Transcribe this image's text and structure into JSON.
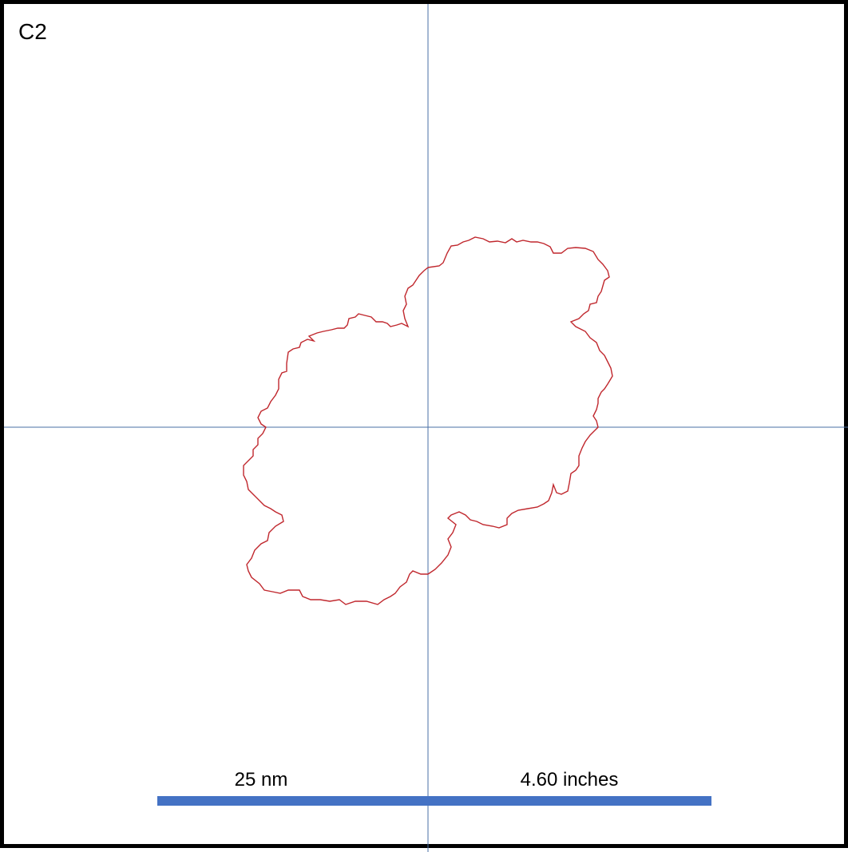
{
  "panel": {
    "label": "C2"
  },
  "scale_bar": {
    "left_label": "25 nm",
    "right_label": "4.60 inches",
    "color": "#4472c4"
  },
  "crosshair": {
    "color": "#4a6fa5"
  },
  "outline": {
    "color": "#c0272d",
    "description_name": "particle-contour"
  }
}
